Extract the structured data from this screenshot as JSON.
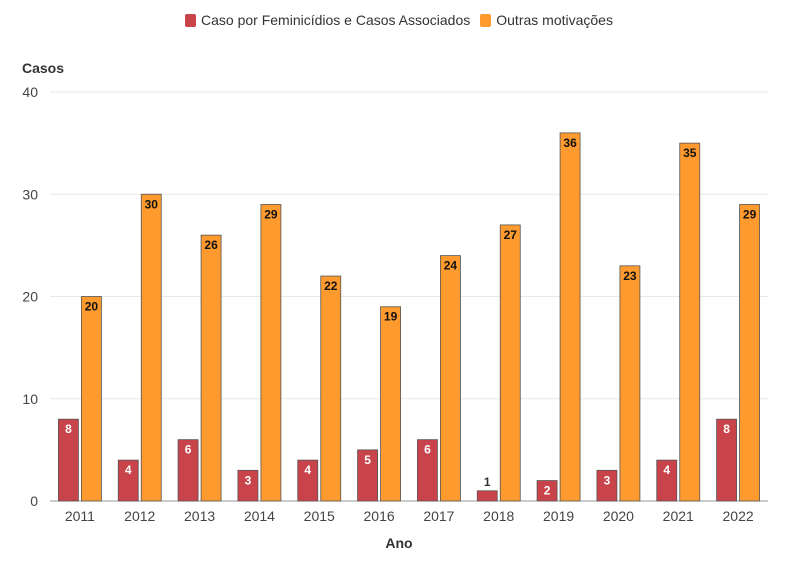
{
  "chart_data": {
    "type": "bar",
    "xlabel": "Ano",
    "ylabel": "Casos",
    "ylim": [
      0,
      40
    ],
    "yticks": [
      0,
      10,
      20,
      30,
      40
    ],
    "grid": true,
    "legend_position": "top-center",
    "categories": [
      "2011",
      "2012",
      "2013",
      "2014",
      "2015",
      "2016",
      "2017",
      "2018",
      "2019",
      "2020",
      "2021",
      "2022"
    ],
    "series": [
      {
        "name": "Caso por Feminicídios e Casos Associados",
        "color": "#c8444a",
        "values": [
          8,
          4,
          6,
          3,
          4,
          5,
          6,
          1,
          2,
          3,
          4,
          8
        ]
      },
      {
        "name": "Outras motivações",
        "color": "#ff9a2e",
        "values": [
          20,
          30,
          26,
          29,
          22,
          19,
          24,
          27,
          36,
          23,
          35,
          29
        ]
      }
    ]
  }
}
